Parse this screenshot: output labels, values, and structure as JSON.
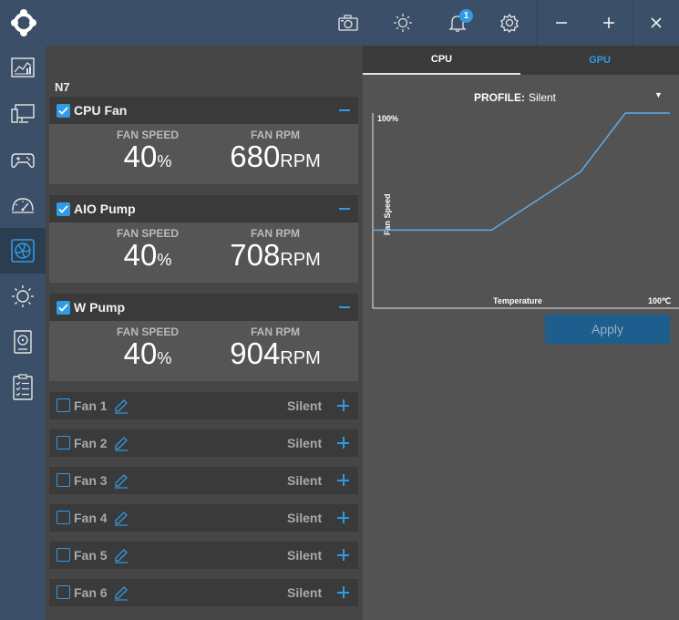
{
  "app": {
    "notifications": "1"
  },
  "header": {
    "icons": [
      "logo-icon",
      "camera-icon",
      "brightness-icon",
      "bell-icon",
      "gear-icon",
      "minimize-icon",
      "maximize-icon",
      "close-icon"
    ]
  },
  "sidebar": {
    "items": [
      "dashboard-icon",
      "monitor-icon",
      "gamepad-icon",
      "gauge-icon",
      "fan-icon",
      "lighting-icon",
      "storage-icon",
      "checklist-icon"
    ],
    "active": "fan-icon"
  },
  "device": {
    "name": "N7"
  },
  "labels": {
    "fan_speed": "FAN SPEED",
    "fan_rpm": "FAN RPM",
    "pct_unit": "%",
    "rpm_unit": "RPM"
  },
  "fans_expanded": [
    {
      "name": "CPU Fan",
      "speed": "40",
      "rpm": "680"
    },
    {
      "name": "AIO Pump",
      "speed": "40",
      "rpm": "708"
    },
    {
      "name": "W Pump",
      "speed": "40",
      "rpm": "904"
    }
  ],
  "fans_collapsed": [
    {
      "name": "Fan 1",
      "profile": "Silent"
    },
    {
      "name": "Fan 2",
      "profile": "Silent"
    },
    {
      "name": "Fan 3",
      "profile": "Silent"
    },
    {
      "name": "Fan 4",
      "profile": "Silent"
    },
    {
      "name": "Fan 5",
      "profile": "Silent"
    },
    {
      "name": "Fan 6",
      "profile": "Silent"
    }
  ],
  "tabs": {
    "cpu": "CPU",
    "gpu": "GPU",
    "active": "CPU"
  },
  "profile": {
    "label": "PROFILE:",
    "value": "Silent"
  },
  "chart_data": {
    "type": "line",
    "xlabel": "Temperature",
    "ylabel": "Fan Speed",
    "y_max_label": "100%",
    "x_max_label": "100℃",
    "xlim": [
      0,
      100
    ],
    "ylim": [
      0,
      100
    ],
    "series": [
      {
        "x": [
          0,
          40,
          70,
          85,
          100
        ],
        "y": [
          40,
          40,
          70,
          100,
          100
        ]
      }
    ],
    "line_color": "#5dadea"
  },
  "apply_label": "Apply"
}
